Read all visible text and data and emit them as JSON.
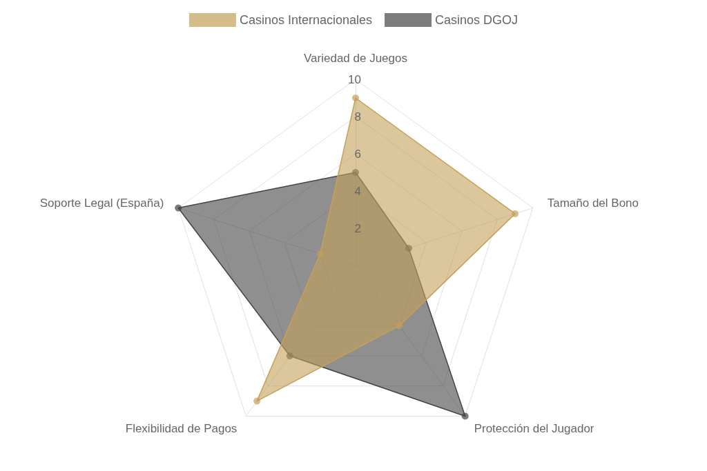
{
  "chart_data": {
    "type": "radar",
    "categories": [
      "Variedad de Juegos",
      "Tamaño del Bono",
      "Protección del Jugador",
      "Flexibilidad de Pagos",
      "Soporte Legal (España)"
    ],
    "series": [
      {
        "name": "Casinos Internacionales",
        "color": "#c5a059",
        "values": [
          9,
          9,
          4,
          9,
          2
        ]
      },
      {
        "name": "Casinos DGOJ",
        "color": "#444444",
        "values": [
          5,
          3,
          10,
          6,
          10
        ]
      }
    ],
    "ylim": [
      0,
      10
    ],
    "yticks": [
      2,
      4,
      6,
      8,
      10
    ],
    "grid": true,
    "legend": "top",
    "marker": "circle",
    "line_style": "solid"
  }
}
